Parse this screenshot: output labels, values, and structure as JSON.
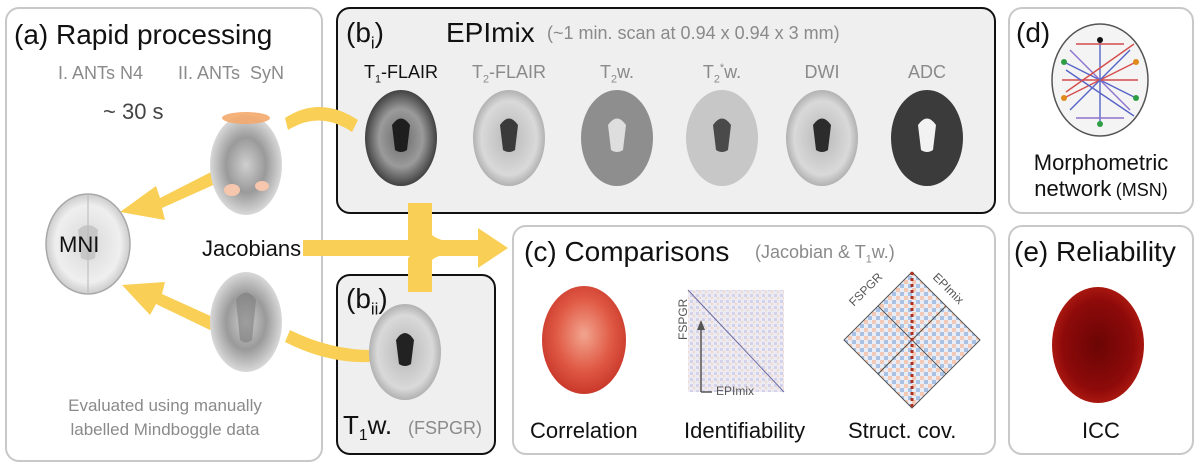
{
  "panel_a": {
    "label": "(a)",
    "title": "Rapid processing",
    "step1": "I. ANTs N4",
    "step2": "II. ANTs  SyN",
    "time": "~ 30 s",
    "mni": "MNI",
    "jacobians": "Jacobians",
    "eval_line1": "Evaluated using manually",
    "eval_line2": "labelled Mindboggle data"
  },
  "panel_bi": {
    "label_b": "(b",
    "label_sub": "i",
    "label_close": ")",
    "title": "EPImix",
    "subtitle": "(~1 min. scan at 0.94 x 0.94 x 3 mm)",
    "contrasts": [
      {
        "base": "T",
        "sub": "1",
        "sup": "",
        "rest": "-FLAIR"
      },
      {
        "base": "T",
        "sub": "2",
        "sup": "",
        "rest": "-FLAIR"
      },
      {
        "base": "T",
        "sub": "2",
        "sup": "",
        "rest": "w."
      },
      {
        "base": "T",
        "sub": "2",
        "sup": "*",
        "rest": "w."
      },
      {
        "base": "DWI",
        "sub": "",
        "sup": "",
        "rest": ""
      },
      {
        "base": "ADC",
        "sub": "",
        "sup": "",
        "rest": ""
      }
    ]
  },
  "panel_bii": {
    "label_b": "(b",
    "label_sub": "ii",
    "label_close": ")",
    "t1": "T",
    "t1_sub": "1",
    "t1_rest": "w.",
    "fspgr": "(FSPGR)"
  },
  "panel_c": {
    "label": "(c)",
    "title": "Comparisons",
    "subtitle_pre": "(Jacobian & T",
    "subtitle_sub": "1",
    "subtitle_post": "w.)",
    "correlation": "Correlation",
    "identifiability": "Identifiability",
    "struct_cov": "Struct. cov.",
    "axis_y": "FSPGR",
    "axis_x": "EPImix",
    "diamond_left": "FSPGR",
    "diamond_right": "EPImix"
  },
  "panel_d": {
    "label": "(d)",
    "line1": "Morphometric",
    "line2": "network",
    "abbr": "(MSN)"
  },
  "panel_e": {
    "label": "(e)",
    "title": "Reliability",
    "icc": "ICC"
  },
  "colors": {
    "arrow": "#f9cf55",
    "arrow_orange": "#f5b942",
    "panel_border_dark": "#111111",
    "panel_border_light": "#c8c8c8",
    "panel_fill_dark": "#efefef",
    "correlation_red": "#e05a45",
    "icc_red": "#8e0a0a"
  }
}
